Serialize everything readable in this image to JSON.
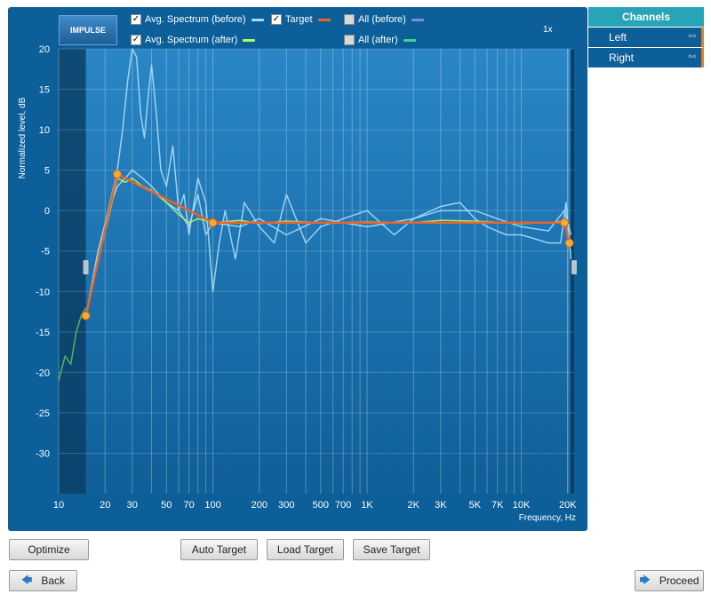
{
  "impulse_button": {
    "label": "IMPULSE"
  },
  "legend": {
    "avg_before": {
      "label": "Avg. Spectrum (before)",
      "checked": true,
      "color": "#a8dcf5"
    },
    "target": {
      "label": "Target",
      "checked": true,
      "color": "#e8642a"
    },
    "all_before": {
      "label": "All (before)",
      "checked": false,
      "color": "#7b8fe0"
    },
    "avg_after": {
      "label": "Avg. Spectrum (after)",
      "checked": true,
      "color": "#b6f56a"
    },
    "all_after": {
      "label": "All (after)",
      "checked": false,
      "color": "#3fd88a"
    }
  },
  "zoom": "1x",
  "chart_data": {
    "type": "line",
    "xscale": "log",
    "xlim": [
      10,
      22000
    ],
    "ylim": [
      -35,
      20
    ],
    "ylabel": "Normalized level, dB",
    "xlabel": "Frequency, Hz",
    "grid": true,
    "yticks": [
      {
        "v": 20,
        "label": "20"
      },
      {
        "v": 15,
        "label": "15"
      },
      {
        "v": 10,
        "label": "10"
      },
      {
        "v": 5,
        "label": "5"
      },
      {
        "v": 0,
        "label": "0"
      },
      {
        "v": -5,
        "label": "-5"
      },
      {
        "v": -10,
        "label": "-10"
      },
      {
        "v": -15,
        "label": "-15"
      },
      {
        "v": -20,
        "label": "-20"
      },
      {
        "v": -25,
        "label": "-25"
      },
      {
        "v": -30,
        "label": "-30"
      }
    ],
    "xticks": [
      {
        "v": 10,
        "label": "10"
      },
      {
        "v": 20,
        "label": "20"
      },
      {
        "v": 30,
        "label": "30"
      },
      {
        "v": 50,
        "label": "50"
      },
      {
        "v": 70,
        "label": "70"
      },
      {
        "v": 100,
        "label": "100"
      },
      {
        "v": 200,
        "label": "200"
      },
      {
        "v": 300,
        "label": "300"
      },
      {
        "v": 500,
        "label": "500"
      },
      {
        "v": 700,
        "label": "700"
      },
      {
        "v": 1000,
        "label": "1K"
      },
      {
        "v": 2000,
        "label": "2K"
      },
      {
        "v": 3000,
        "label": "3K"
      },
      {
        "v": 5000,
        "label": "5K"
      },
      {
        "v": 7000,
        "label": "7K"
      },
      {
        "v": 10000,
        "label": "10K"
      },
      {
        "v": 20000,
        "label": "20K"
      }
    ],
    "shaded_regions": [
      [
        10,
        15
      ]
    ],
    "series": [
      {
        "name": "Target",
        "color": "#e8642a",
        "x": [
          15,
          24,
          100,
          19000,
          20500
        ],
        "y": [
          -13,
          4.5,
          -1.5,
          -1.5,
          -4
        ],
        "markers": true
      },
      {
        "name": "Avg. Spectrum (before)",
        "color": "#a8dcf5",
        "x": [
          15,
          18,
          21,
          24,
          26,
          28,
          30,
          32,
          34,
          36,
          38,
          40,
          43,
          46,
          50,
          55,
          60,
          65,
          70,
          80,
          90,
          100,
          110,
          120,
          140,
          160,
          200,
          250,
          300,
          400,
          500,
          700,
          1000,
          1500,
          2000,
          3000,
          4000,
          5000,
          6000,
          8000,
          10000,
          15000,
          18000,
          19500,
          21000
        ],
        "y": [
          -13,
          -6,
          0,
          5,
          10,
          16,
          21,
          19,
          12,
          9,
          14,
          18,
          12,
          5,
          3,
          8,
          0,
          2,
          -3,
          4,
          1,
          -10,
          -4,
          0,
          -6,
          1,
          -2,
          -4,
          2,
          -4,
          -2,
          -1,
          0,
          -3,
          -1,
          0.5,
          1,
          -1,
          -2,
          -3,
          -3,
          -4,
          -4,
          1,
          -6
        ]
      },
      {
        "name": "Avg. Spectrum (before)",
        "color": "#a8dcf5",
        "x": [
          15,
          18,
          21,
          24,
          27,
          30,
          35,
          40,
          50,
          60,
          70,
          80,
          90,
          100,
          150,
          200,
          300,
          500,
          1000,
          2000,
          3000,
          5000,
          7000,
          10000,
          15000,
          19000,
          21000
        ],
        "y": [
          -13,
          -5,
          0,
          3,
          4,
          5,
          4,
          3,
          1,
          0,
          -2,
          2,
          -3,
          -1.5,
          -2,
          -1,
          -3,
          -1,
          -2,
          -1,
          0,
          0,
          -1,
          -2,
          -2.5,
          0,
          -3
        ]
      },
      {
        "name": "Avg. Spectrum (after)",
        "color": "#b6f56a",
        "x": [
          15,
          18,
          21,
          24,
          27,
          30,
          35,
          40,
          50,
          60,
          70,
          80,
          100,
          150,
          200,
          300,
          500,
          1000,
          2000,
          3000,
          5000,
          10000,
          15000,
          19000,
          20500
        ],
        "y": [
          -13,
          -6,
          -1,
          4,
          3.5,
          4,
          3,
          2.5,
          1,
          -0.5,
          -1.5,
          -1,
          -1.5,
          -1.2,
          -1.6,
          -1.3,
          -1.5,
          -1.4,
          -1.5,
          -1.2,
          -1.3,
          -1.6,
          -1.5,
          -1.3,
          -1.8
        ]
      },
      {
        "name": "Avg. Spectrum (after)",
        "color": "#5fbf5a",
        "x": [
          10,
          11,
          12,
          13,
          14,
          15
        ],
        "y": [
          -21,
          -18,
          -19,
          -15,
          -13,
          -12
        ]
      }
    ]
  },
  "channels": {
    "title": "Channels",
    "items": [
      {
        "label": "Left"
      },
      {
        "label": "Right"
      }
    ]
  },
  "buttons": {
    "optimize": "Optimize",
    "auto_target": "Auto Target",
    "load_target": "Load Target",
    "save_target": "Save Target",
    "back": "Back",
    "proceed": "Proceed"
  }
}
